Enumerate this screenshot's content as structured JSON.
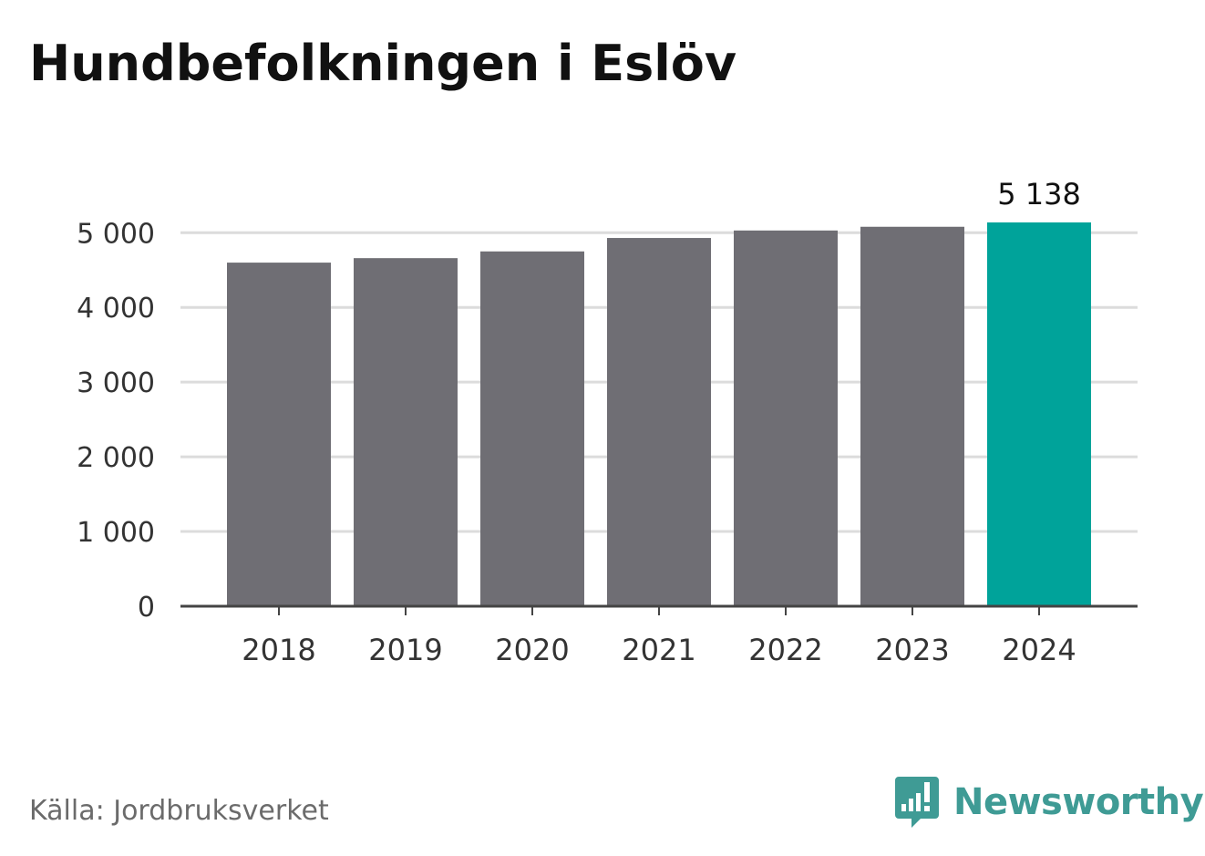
{
  "title": "Hundbefolkningen i Eslöv",
  "source": "Källa: Jordbruksverket",
  "brand": "Newsworthy",
  "colors": {
    "bar": "#6f6e74",
    "highlight": "#00a39a",
    "grid": "#dcdcdc",
    "axis": "#444444",
    "brand": "#3f9b95"
  },
  "chart_data": {
    "type": "bar",
    "categories": [
      "2018",
      "2019",
      "2020",
      "2021",
      "2022",
      "2023",
      "2024"
    ],
    "values": [
      4600,
      4660,
      4750,
      4930,
      5030,
      5080,
      5138
    ],
    "highlight_index": 6,
    "data_labels": [
      {
        "index": 6,
        "text": "5 138"
      }
    ],
    "y_ticks": [
      {
        "value": 0,
        "label": "0"
      },
      {
        "value": 1000,
        "label": "1 000"
      },
      {
        "value": 2000,
        "label": "2 000"
      },
      {
        "value": 3000,
        "label": "3 000"
      },
      {
        "value": 4000,
        "label": "4 000"
      },
      {
        "value": 5000,
        "label": "5 000"
      }
    ],
    "ylim": [
      0,
      5138
    ],
    "grid": true,
    "legend": "none"
  }
}
